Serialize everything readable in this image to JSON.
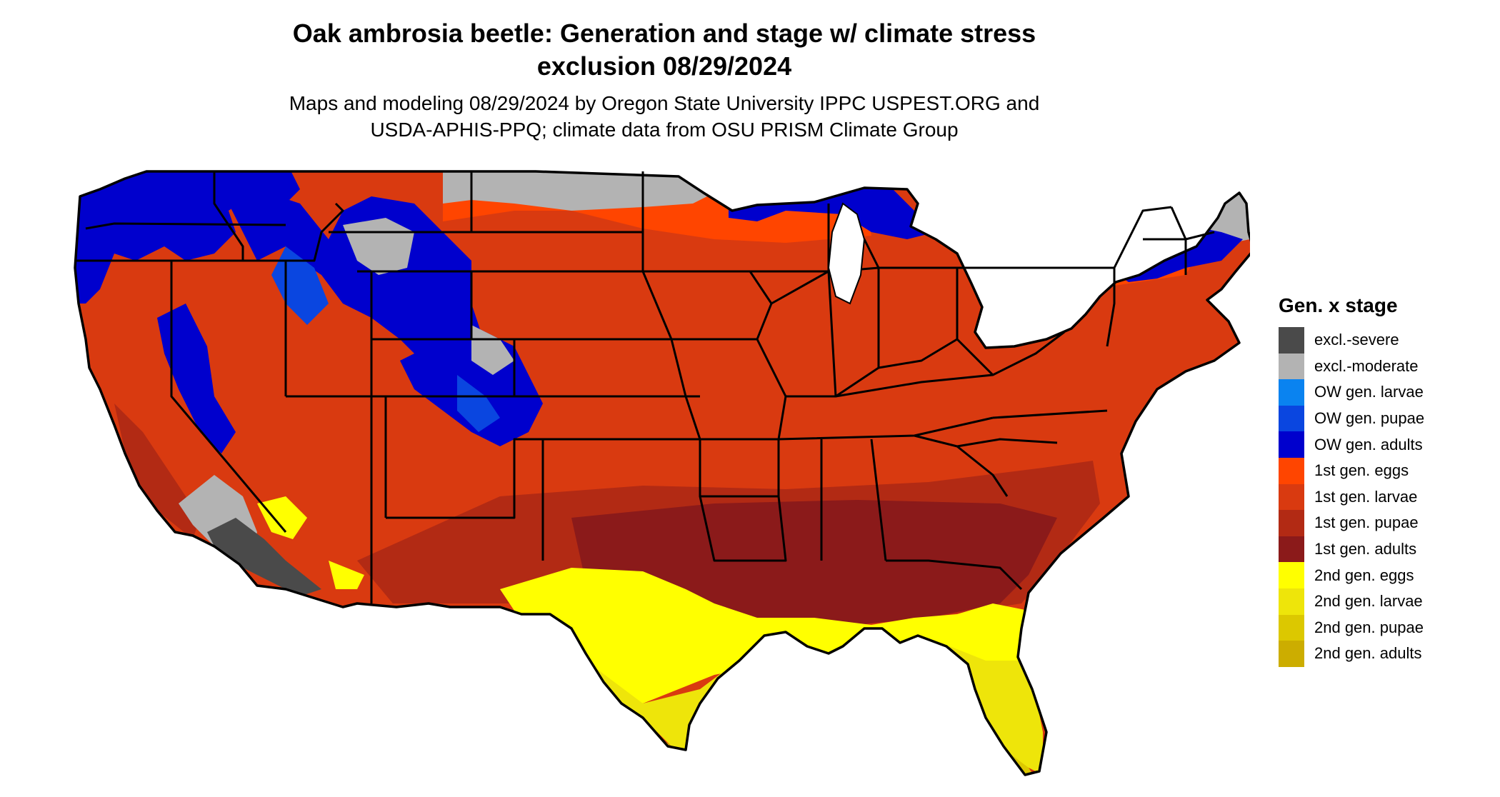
{
  "title": {
    "line1": "Oak ambrosia beetle: Generation and stage w/ climate stress",
    "line2": "exclusion 08/29/2024"
  },
  "subtitle": {
    "line1": "Maps and modeling 08/29/2024 by Oregon State University IPPC USPEST.ORG and",
    "line2": "USDA-APHIS-PPQ; climate data from OSU PRISM Climate Group"
  },
  "legend": {
    "title": "Gen. x stage",
    "items": [
      {
        "label": "excl.-severe",
        "color": "#4a4a4a"
      },
      {
        "label": "excl.-moderate",
        "color": "#b3b3b3"
      },
      {
        "label": "OW gen. larvae",
        "color": "#0a83f0"
      },
      {
        "label": "OW gen. pupae",
        "color": "#0a46e0"
      },
      {
        "label": "OW gen. adults",
        "color": "#0000cd"
      },
      {
        "label": "1st gen. eggs",
        "color": "#ff4500"
      },
      {
        "label": "1st gen. larvae",
        "color": "#d93a10"
      },
      {
        "label": "1st gen. pupae",
        "color": "#b22a14"
      },
      {
        "label": "1st gen. adults",
        "color": "#8b1a1a"
      },
      {
        "label": "2nd gen. eggs",
        "color": "#ffff00"
      },
      {
        "label": "2nd gen. larvae",
        "color": "#eee50a"
      },
      {
        "label": "2nd gen. pupae",
        "color": "#dcc800"
      },
      {
        "label": "2nd gen. adults",
        "color": "#ccad00"
      }
    ]
  }
}
